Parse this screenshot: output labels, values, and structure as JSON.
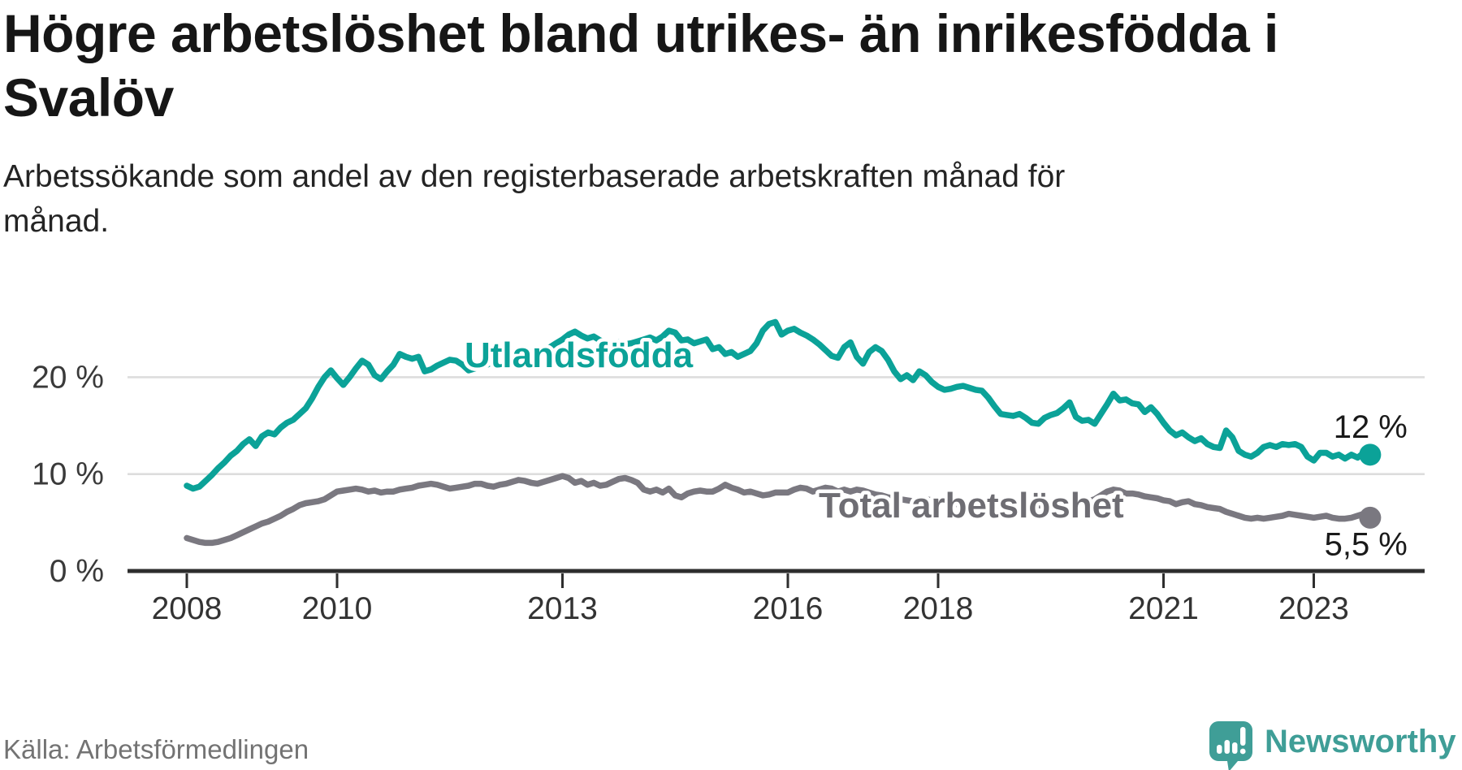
{
  "header": {
    "title": "Högre arbetslöshet bland utrikes- än inrikesfödda i Svalöv",
    "subtitle": "Arbetssökande som andel av den registerbaserade arbetskraften månad för månad."
  },
  "footer": {
    "source": "Källa: Arbetsförmedlingen",
    "brand": "Newsworthy",
    "brand_color": "#3f9e97",
    "logo_icon": "speech-bubble-bar-chart-exclamation"
  },
  "chart_data": {
    "type": "line",
    "x_ticks": [
      2008,
      2010,
      2013,
      2016,
      2018,
      2021,
      2023
    ],
    "y_ticks": [
      0,
      10,
      20
    ],
    "y_tick_suffix": " %",
    "ylim": [
      0,
      27.5
    ],
    "x_range_years": [
      2008,
      2023.75
    ],
    "grid": "horizontal",
    "legend_position": "inline-labels",
    "points_per_year": 12,
    "series": [
      {
        "name": "Utlandsfödda",
        "color": "#0ba298",
        "start_year": 2008,
        "end_label": "12 %",
        "values": [
          8.8,
          8.5,
          8.7,
          9.3,
          9.9,
          10.6,
          11.2,
          11.9,
          12.4,
          13.1,
          13.6,
          12.9,
          13.9,
          14.3,
          14.1,
          14.8,
          15.3,
          15.6,
          16.2,
          16.8,
          17.8,
          19.0,
          20.0,
          20.7,
          19.9,
          19.2,
          20.0,
          20.9,
          21.7,
          21.3,
          20.2,
          19.8,
          20.6,
          21.3,
          22.4,
          22.1,
          21.9,
          22.1,
          20.6,
          20.8,
          21.2,
          21.5,
          21.8,
          21.7,
          21.3,
          20.7,
          20.9,
          21.1,
          21.3,
          21.6,
          21.4,
          21.2,
          21.5,
          21.9,
          22.2,
          22.0,
          22.4,
          22.8,
          23.1,
          23.5,
          23.9,
          24.4,
          24.7,
          24.3,
          24.0,
          24.2,
          23.8,
          23.5,
          23.3,
          23.6,
          23.4,
          23.5,
          23.7,
          23.9,
          24.1,
          23.8,
          24.2,
          24.8,
          24.6,
          23.8,
          23.9,
          23.5,
          23.7,
          23.9,
          22.9,
          23.1,
          22.4,
          22.6,
          22.1,
          22.4,
          22.7,
          23.5,
          24.8,
          25.5,
          25.7,
          24.4,
          24.8,
          25.0,
          24.6,
          24.3,
          23.9,
          23.4,
          22.8,
          22.2,
          22.0,
          23.1,
          23.6,
          22.1,
          21.4,
          22.6,
          23.1,
          22.7,
          21.8,
          20.6,
          19.8,
          20.2,
          19.7,
          20.6,
          20.2,
          19.5,
          19.0,
          18.7,
          18.8,
          19.0,
          19.1,
          18.9,
          18.7,
          18.6,
          17.9,
          17.0,
          16.2,
          16.1,
          16.0,
          16.2,
          15.8,
          15.3,
          15.2,
          15.8,
          16.1,
          16.3,
          16.8,
          17.4,
          15.9,
          15.5,
          15.6,
          15.2,
          16.2,
          17.2,
          18.3,
          17.6,
          17.7,
          17.3,
          17.2,
          16.4,
          16.9,
          16.2,
          15.3,
          14.5,
          14.0,
          14.3,
          13.8,
          13.4,
          13.7,
          13.1,
          12.8,
          12.7,
          14.5,
          13.8,
          12.4,
          12.0,
          11.8,
          12.2,
          12.8,
          13.0,
          12.8,
          13.1,
          13.0,
          13.1,
          12.8,
          11.8,
          11.4,
          12.2,
          12.2,
          11.8,
          12.0,
          11.6,
          12.0,
          11.7,
          12.2,
          12.0
        ]
      },
      {
        "name": "Total arbetslöshet",
        "color": "#7a7880",
        "start_year": 2008,
        "end_label": "5,5 %",
        "values": [
          3.4,
          3.2,
          3.0,
          2.9,
          2.9,
          3.0,
          3.2,
          3.4,
          3.7,
          4.0,
          4.3,
          4.6,
          4.9,
          5.1,
          5.4,
          5.7,
          6.1,
          6.4,
          6.8,
          7.0,
          7.1,
          7.2,
          7.4,
          7.8,
          8.2,
          8.3,
          8.4,
          8.5,
          8.4,
          8.2,
          8.3,
          8.1,
          8.2,
          8.2,
          8.4,
          8.5,
          8.6,
          8.8,
          8.9,
          9.0,
          8.9,
          8.7,
          8.5,
          8.6,
          8.7,
          8.8,
          9.0,
          9.0,
          8.8,
          8.7,
          8.9,
          9.0,
          9.2,
          9.4,
          9.3,
          9.1,
          9.0,
          9.2,
          9.4,
          9.6,
          9.8,
          9.6,
          9.1,
          9.3,
          8.9,
          9.1,
          8.8,
          8.9,
          9.2,
          9.5,
          9.6,
          9.4,
          9.1,
          8.4,
          8.2,
          8.4,
          8.1,
          8.5,
          7.8,
          7.6,
          8.0,
          8.2,
          8.3,
          8.2,
          8.2,
          8.5,
          8.9,
          8.6,
          8.4,
          8.1,
          8.2,
          8.0,
          7.8,
          7.9,
          8.1,
          8.1,
          8.1,
          8.4,
          8.6,
          8.5,
          8.2,
          8.4,
          8.6,
          8.5,
          8.2,
          8.4,
          8.2,
          8.4,
          8.3,
          8.1,
          7.9,
          7.8,
          7.6,
          7.5,
          7.4,
          7.3,
          7.2,
          7.3,
          7.4,
          7.3,
          7.2,
          7.1,
          7.0,
          6.9,
          6.8,
          6.9,
          7.0,
          6.9,
          6.8,
          6.7,
          6.8,
          6.9,
          6.8,
          6.7,
          6.6,
          6.7,
          6.8,
          6.7,
          6.8,
          6.9,
          7.0,
          7.1,
          7.0,
          7.1,
          7.2,
          7.4,
          7.8,
          8.2,
          8.4,
          8.3,
          8.0,
          8.0,
          7.9,
          7.7,
          7.6,
          7.5,
          7.3,
          7.2,
          6.9,
          7.1,
          7.2,
          6.9,
          6.8,
          6.6,
          6.5,
          6.4,
          6.1,
          5.9,
          5.7,
          5.5,
          5.4,
          5.5,
          5.4,
          5.5,
          5.6,
          5.7,
          5.9,
          5.8,
          5.7,
          5.6,
          5.5,
          5.6,
          5.7,
          5.5,
          5.4,
          5.4,
          5.5,
          5.7,
          5.9,
          5.5
        ]
      }
    ]
  }
}
